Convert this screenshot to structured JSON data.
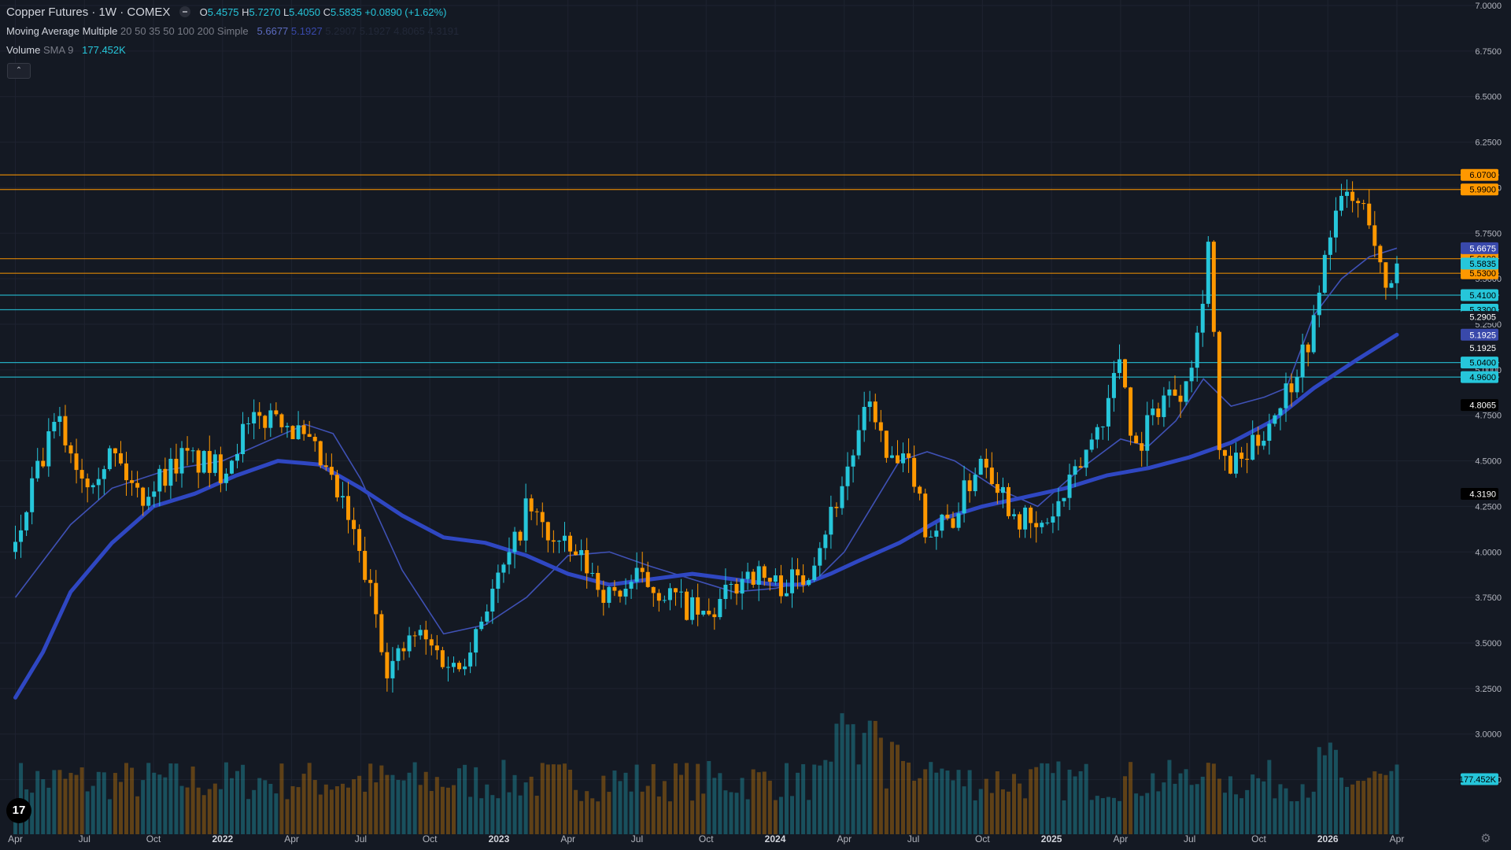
{
  "legend": {
    "symbol": "Copper Futures · 1W · COMEX",
    "o_label": "O",
    "o": "5.4575",
    "h_label": "H",
    "h": "5.7270",
    "l_label": "L",
    "l": "5.4050",
    "c_label": "C",
    "c": "5.5835",
    "change": "+0.0890 (+1.62%)",
    "ma_title": "Moving Average Multiple",
    "ma_params": "20 50 35 50 100 200 Simple",
    "ma_values": [
      "5.6677",
      "5.1927",
      "5.2907",
      "5.1927",
      "4.8065",
      "4.3191"
    ],
    "vol_title": "Volume",
    "vol_params": "SMA 9",
    "vol_value": "177.452K"
  },
  "colors": {
    "background": "#141923",
    "up": "#26c6da",
    "down": "#ff9800",
    "ma_fast": "#3f51b5",
    "ma_slow": "#2f47c2",
    "level_orange": "#ff9800",
    "level_cyan": "#26c6da",
    "grid": "#1e2330"
  },
  "icons": {
    "collapse": "chevron-up-icon",
    "logo": "tradingview-logo-icon",
    "settings": "gear-icon"
  },
  "logo_text": "17",
  "collapse_glyph": "⌃",
  "settings_glyph": "⚙",
  "chart_data": {
    "type": "candlestick",
    "symbol": "Copper Futures",
    "interval": "1W",
    "exchange": "COMEX",
    "ylim": [
      2.45,
      7.0
    ],
    "y_ticks": [
      "7.0000",
      "6.7500",
      "6.5000",
      "6.2500",
      "6.0000",
      "5.7500",
      "5.5000",
      "5.2500",
      "5.0000",
      "4.7500",
      "4.5000",
      "4.2500",
      "4.0000",
      "3.7500",
      "3.5000",
      "3.2500",
      "3.0000",
      "2.7500"
    ],
    "x_ticks": [
      {
        "t": 0,
        "label": "Apr",
        "bold": false
      },
      {
        "t": 0.25,
        "label": "Jul",
        "bold": false
      },
      {
        "t": 0.5,
        "label": "Oct",
        "bold": false
      },
      {
        "t": 0.75,
        "label": "2022",
        "bold": true
      },
      {
        "t": 1.0,
        "label": "Apr",
        "bold": false
      },
      {
        "t": 1.25,
        "label": "Jul",
        "bold": false
      },
      {
        "t": 1.5,
        "label": "Oct",
        "bold": false
      },
      {
        "t": 1.75,
        "label": "2023",
        "bold": true
      },
      {
        "t": 2.0,
        "label": "Apr",
        "bold": false
      },
      {
        "t": 2.25,
        "label": "Jul",
        "bold": false
      },
      {
        "t": 2.5,
        "label": "Oct",
        "bold": false
      },
      {
        "t": 2.75,
        "label": "2024",
        "bold": true
      },
      {
        "t": 3.0,
        "label": "Apr",
        "bold": false
      },
      {
        "t": 3.25,
        "label": "Jul",
        "bold": false
      },
      {
        "t": 3.5,
        "label": "Oct",
        "bold": false
      },
      {
        "t": 3.75,
        "label": "2025",
        "bold": true
      },
      {
        "t": 4.0,
        "label": "Apr",
        "bold": false
      },
      {
        "t": 4.25,
        "label": "Jul",
        "bold": false
      },
      {
        "t": 4.5,
        "label": "Oct",
        "bold": false
      },
      {
        "t": 4.75,
        "label": "2026",
        "bold": true
      },
      {
        "t": 5.0,
        "label": "Apr",
        "bold": false
      }
    ],
    "candle_count": 250,
    "last_close": 5.5835,
    "price_path": [
      [
        0.0,
        4.0
      ],
      [
        0.05,
        4.3
      ],
      [
        0.15,
        4.72
      ],
      [
        0.25,
        4.4
      ],
      [
        0.35,
        4.55
      ],
      [
        0.45,
        4.3
      ],
      [
        0.6,
        4.52
      ],
      [
        0.75,
        4.45
      ],
      [
        0.82,
        4.65
      ],
      [
        0.95,
        4.78
      ],
      [
        1.1,
        4.5
      ],
      [
        1.2,
        4.2
      ],
      [
        1.3,
        3.7
      ],
      [
        1.35,
        3.35
      ],
      [
        1.45,
        3.55
      ],
      [
        1.6,
        3.35
      ],
      [
        1.7,
        3.7
      ],
      [
        1.8,
        4.0
      ],
      [
        1.85,
        4.25
      ],
      [
        1.95,
        4.05
      ],
      [
        2.05,
        3.95
      ],
      [
        2.15,
        3.75
      ],
      [
        2.25,
        3.85
      ],
      [
        2.35,
        3.78
      ],
      [
        2.5,
        3.62
      ],
      [
        2.65,
        3.9
      ],
      [
        2.75,
        3.82
      ],
      [
        2.85,
        3.85
      ],
      [
        2.95,
        4.2
      ],
      [
        3.05,
        4.62
      ],
      [
        3.1,
        4.85
      ],
      [
        3.15,
        4.5
      ],
      [
        3.25,
        4.45
      ],
      [
        3.3,
        4.1
      ],
      [
        3.4,
        4.2
      ],
      [
        3.5,
        4.55
      ],
      [
        3.6,
        4.25
      ],
      [
        3.7,
        4.1
      ],
      [
        3.8,
        4.3
      ],
      [
        3.95,
        4.8
      ],
      [
        4.0,
        5.1
      ],
      [
        4.05,
        4.55
      ],
      [
        4.15,
        4.85
      ],
      [
        4.22,
        4.9
      ],
      [
        4.28,
        5.2
      ],
      [
        4.32,
        5.75
      ],
      [
        4.36,
        4.45
      ],
      [
        4.45,
        4.5
      ],
      [
        4.55,
        4.75
      ],
      [
        4.62,
        4.95
      ],
      [
        4.7,
        5.25
      ],
      [
        4.76,
        5.8
      ],
      [
        4.82,
        5.95
      ],
      [
        4.9,
        5.85
      ],
      [
        4.96,
        5.4
      ],
      [
        5.0,
        5.5835
      ]
    ],
    "ma_fast": [
      [
        0.0,
        3.75
      ],
      [
        0.2,
        4.15
      ],
      [
        0.35,
        4.35
      ],
      [
        0.55,
        4.45
      ],
      [
        0.75,
        4.5
      ],
      [
        0.9,
        4.6
      ],
      [
        1.05,
        4.7
      ],
      [
        1.15,
        4.65
      ],
      [
        1.25,
        4.4
      ],
      [
        1.4,
        3.9
      ],
      [
        1.55,
        3.55
      ],
      [
        1.7,
        3.6
      ],
      [
        1.85,
        3.75
      ],
      [
        2.0,
        3.98
      ],
      [
        2.15,
        4.0
      ],
      [
        2.3,
        3.92
      ],
      [
        2.45,
        3.85
      ],
      [
        2.6,
        3.78
      ],
      [
        2.75,
        3.8
      ],
      [
        2.9,
        3.85
      ],
      [
        3.0,
        4.0
      ],
      [
        3.1,
        4.25
      ],
      [
        3.2,
        4.5
      ],
      [
        3.3,
        4.55
      ],
      [
        3.4,
        4.5
      ],
      [
        3.55,
        4.35
      ],
      [
        3.7,
        4.25
      ],
      [
        3.85,
        4.45
      ],
      [
        4.0,
        4.62
      ],
      [
        4.1,
        4.58
      ],
      [
        4.2,
        4.72
      ],
      [
        4.3,
        4.95
      ],
      [
        4.4,
        4.8
      ],
      [
        4.52,
        4.85
      ],
      [
        4.6,
        4.9
      ],
      [
        4.7,
        5.3
      ],
      [
        4.8,
        5.5
      ],
      [
        4.9,
        5.62
      ],
      [
        5.0,
        5.6677
      ]
    ],
    "ma_slow": [
      [
        0.0,
        3.2
      ],
      [
        0.1,
        3.45
      ],
      [
        0.2,
        3.78
      ],
      [
        0.35,
        4.05
      ],
      [
        0.5,
        4.25
      ],
      [
        0.65,
        4.32
      ],
      [
        0.8,
        4.42
      ],
      [
        0.95,
        4.5
      ],
      [
        1.1,
        4.48
      ],
      [
        1.25,
        4.35
      ],
      [
        1.4,
        4.2
      ],
      [
        1.55,
        4.08
      ],
      [
        1.7,
        4.05
      ],
      [
        1.85,
        3.98
      ],
      [
        2.0,
        3.88
      ],
      [
        2.15,
        3.82
      ],
      [
        2.3,
        3.85
      ],
      [
        2.45,
        3.88
      ],
      [
        2.6,
        3.85
      ],
      [
        2.75,
        3.82
      ],
      [
        2.85,
        3.82
      ],
      [
        2.95,
        3.88
      ],
      [
        3.05,
        3.95
      ],
      [
        3.2,
        4.05
      ],
      [
        3.35,
        4.18
      ],
      [
        3.5,
        4.25
      ],
      [
        3.65,
        4.3
      ],
      [
        3.8,
        4.35
      ],
      [
        3.95,
        4.42
      ],
      [
        4.1,
        4.46
      ],
      [
        4.25,
        4.52
      ],
      [
        4.4,
        4.6
      ],
      [
        4.55,
        4.72
      ],
      [
        4.7,
        4.9
      ],
      [
        4.85,
        5.05
      ],
      [
        5.0,
        5.1927
      ]
    ],
    "volume": {
      "scale_max": 3.3,
      "typical": 1.0,
      "spikes": [
        [
          3.0,
          1.9
        ],
        [
          3.1,
          1.78
        ],
        [
          3.2,
          1.35
        ],
        [
          3.35,
          1.05
        ],
        [
          4.32,
          1.05
        ],
        [
          4.75,
          1.35
        ]
      ]
    },
    "levels": [
      {
        "price": 6.07,
        "label": "6.0700",
        "kind": "orange"
      },
      {
        "price": 5.99,
        "label": "5.9900",
        "kind": "orange"
      },
      {
        "price": 5.61,
        "label": "5.6100",
        "kind": "orange"
      },
      {
        "price": 5.53,
        "label": "5.5300",
        "kind": "orange"
      },
      {
        "price": 5.41,
        "label": "5.4100",
        "kind": "cyan"
      },
      {
        "price": 5.33,
        "label": "5.3300",
        "kind": "cyan"
      },
      {
        "price": 5.04,
        "label": "5.0400",
        "kind": "cyan"
      },
      {
        "price": 4.96,
        "label": "4.9600",
        "kind": "cyan"
      }
    ],
    "price_tags": [
      {
        "price": 5.6677,
        "label": "5.6675",
        "bg": "#3949ab",
        "fg": "#ffffff"
      },
      {
        "price": 5.5835,
        "label": "5.5835",
        "bg": "#26c6da",
        "fg": "#000000"
      },
      {
        "price": 5.2905,
        "label": "5.2905",
        "bg": "#141923",
        "fg": "#ffffff"
      },
      {
        "price": 5.1927,
        "label": "5.1925",
        "bg": "#3949ab",
        "fg": "#ffffff"
      },
      {
        "price": 5.12,
        "label": "5.1925",
        "bg": "#141923",
        "fg": "#ffffff"
      },
      {
        "price": 4.8065,
        "label": "4.8065",
        "bg": "#000000",
        "fg": "#ffffff"
      },
      {
        "price": 4.319,
        "label": "4.3190",
        "bg": "#000000",
        "fg": "#ffffff"
      }
    ],
    "volume_tag": "177.452K"
  }
}
